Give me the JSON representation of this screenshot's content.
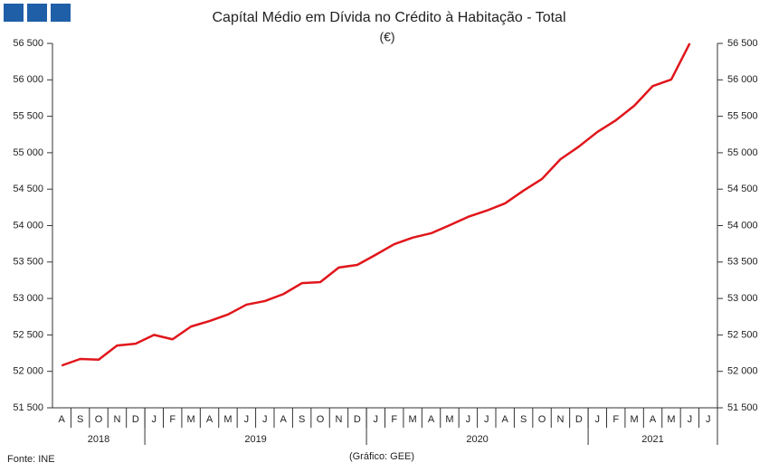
{
  "chart_data": {
    "type": "line",
    "title": "Capítal Médio em Dívida no Crédito à Habitação - Total",
    "subtitle": "(€)",
    "source": "Fonte: INE",
    "credit": "(Gráfico: GEE)",
    "categories": [
      "A",
      "S",
      "O",
      "N",
      "D",
      "J",
      "F",
      "M",
      "A",
      "M",
      "J",
      "J",
      "A",
      "S",
      "O",
      "N",
      "D",
      "J",
      "F",
      "M",
      "A",
      "M",
      "J",
      "J",
      "A",
      "S",
      "O",
      "N",
      "D",
      "J",
      "F",
      "M",
      "A",
      "M",
      "J",
      "J"
    ],
    "year_labels": [
      "2018",
      "2019",
      "2020",
      "2021"
    ],
    "year_spans": [
      5,
      12,
      12,
      7
    ],
    "series": [
      {
        "name": "Total",
        "color": "#e0161b",
        "values": [
          52080,
          52170,
          52160,
          52355,
          52380,
          52500,
          52440,
          52615,
          52690,
          52780,
          52915,
          52965,
          53060,
          53210,
          53225,
          53425,
          53460,
          53600,
          53745,
          53835,
          53895,
          54005,
          54120,
          54205,
          54305,
          54480,
          54640,
          54910,
          55085,
          55285,
          55445,
          55645,
          55915,
          56005,
          56500,
          null
        ]
      }
    ],
    "ylim": [
      51500,
      56500
    ],
    "yticks": [
      {
        "value": 51500,
        "label": "51 500"
      },
      {
        "value": 52000,
        "label": "52 000"
      },
      {
        "value": 52500,
        "label": "52 500"
      },
      {
        "value": 53000,
        "label": "53 000"
      },
      {
        "value": 53500,
        "label": "53 500"
      },
      {
        "value": 54000,
        "label": "54 000"
      },
      {
        "value": 54500,
        "label": "54 500"
      },
      {
        "value": 55000,
        "label": "55 000"
      },
      {
        "value": 55500,
        "label": "55 500"
      },
      {
        "value": 56000,
        "label": "56 000"
      },
      {
        "value": 56500,
        "label": "56 500"
      }
    ],
    "grid": false
  }
}
